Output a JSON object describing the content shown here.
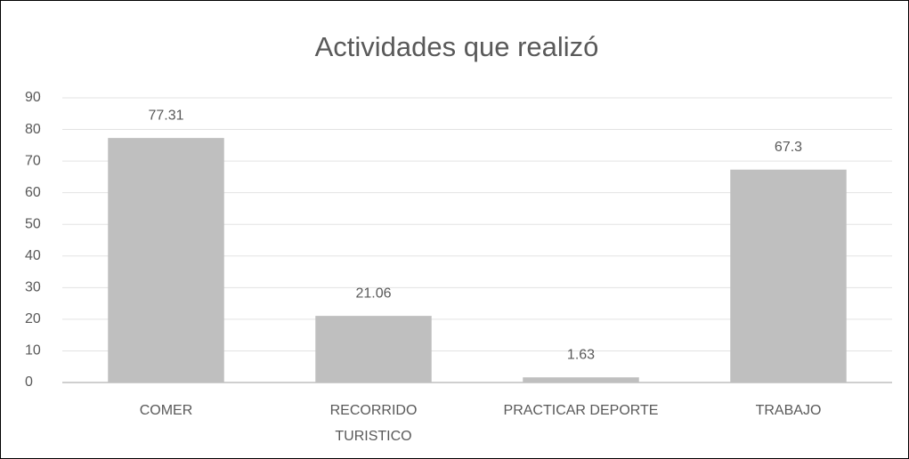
{
  "chart_data": {
    "type": "bar",
    "title": "Actividades que realizó",
    "categories": [
      "COMER",
      "RECORRIDO TURISTICO",
      "PRACTICAR DEPORTE",
      "TRABAJO"
    ],
    "values": [
      77.31,
      21.06,
      1.63,
      67.3
    ],
    "color": "#bfbfbf",
    "ylim": [
      0,
      90
    ],
    "yticks": [
      0,
      10,
      20,
      30,
      40,
      50,
      60,
      70,
      80,
      90
    ],
    "grid": true
  }
}
